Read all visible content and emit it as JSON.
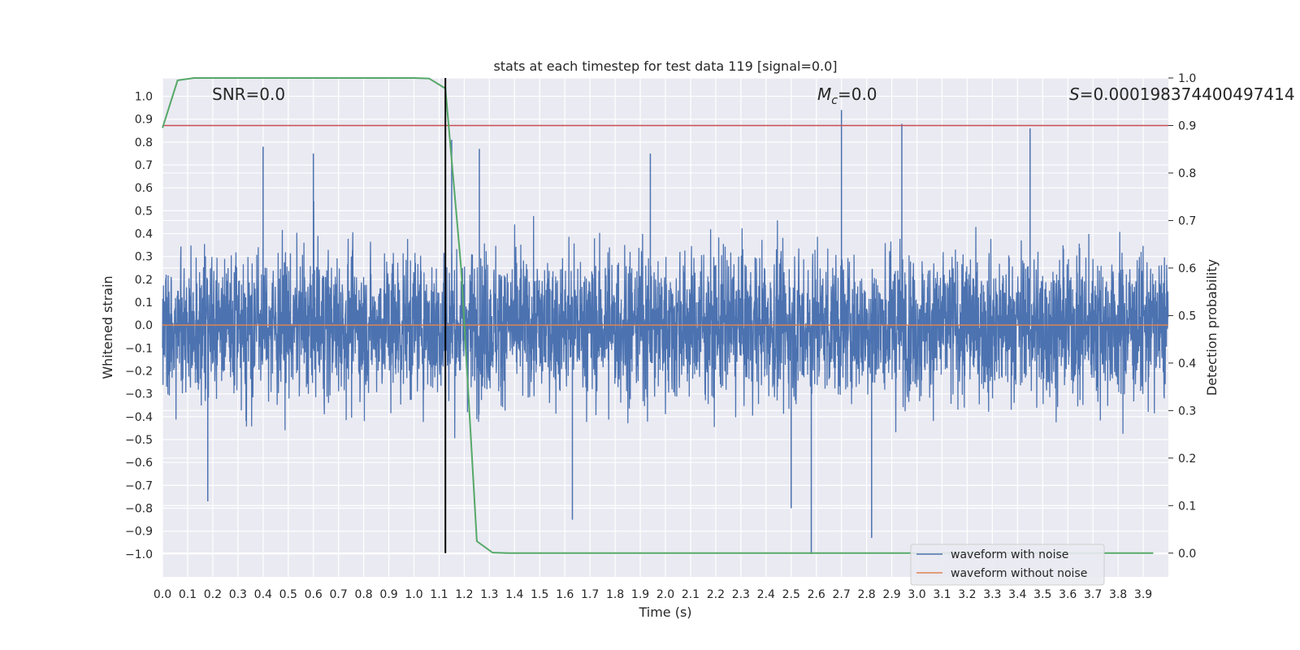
{
  "chart_data": {
    "type": "line",
    "title": "stats at each timestep for test data 119 [signal=0.0]",
    "xlabel": "Time (s)",
    "ylabel_left": "Whitened strain",
    "ylabel_right": "Detection probability",
    "xlim": [
      0.0,
      4.0
    ],
    "ylim_left": [
      -1.1,
      1.08
    ],
    "ylim_right": [
      -0.05,
      1.0
    ],
    "x_ticks": [
      0.0,
      0.1,
      0.2,
      0.3,
      0.4,
      0.5,
      0.6,
      0.7,
      0.8,
      0.9,
      1.0,
      1.1,
      1.2,
      1.3,
      1.4,
      1.5,
      1.6,
      1.7,
      1.8,
      1.9,
      2.0,
      2.1,
      2.2,
      2.3,
      2.4,
      2.5,
      2.6,
      2.7,
      2.8,
      2.9,
      3.0,
      3.1,
      3.2,
      3.3,
      3.4,
      3.5,
      3.6,
      3.7,
      3.8,
      3.9
    ],
    "x_tick_labels": [
      "0.0",
      "0.1",
      "0.2",
      "0.3",
      "0.4",
      "0.5",
      "0.6",
      "0.7",
      "0.8",
      "0.9",
      "1.0",
      "1.1",
      "1.2",
      "1.3",
      "1.4",
      "1.5",
      "1.6",
      "1.7",
      "1.8",
      "1.9",
      "2.0",
      "2.1",
      "2.2",
      "2.3",
      "2.4",
      "2.5",
      "2.6",
      "2.7",
      "2.8",
      "2.9",
      "3.0",
      "3.1",
      "3.2",
      "3.3",
      "3.4",
      "3.5",
      "3.6",
      "3.7",
      "3.8",
      "3.9"
    ],
    "y_left_ticks": [
      -1.0,
      -0.9,
      -0.8,
      -0.7,
      -0.6,
      -0.5,
      -0.4,
      -0.3,
      -0.2,
      -0.1,
      0.0,
      0.1,
      0.2,
      0.3,
      0.4,
      0.5,
      0.6,
      0.7,
      0.8,
      0.9,
      1.0
    ],
    "y_left_tick_labels": [
      "−1.0",
      "−0.9",
      "−0.8",
      "−0.7",
      "−0.6",
      "−0.5",
      "−0.4",
      "−0.3",
      "−0.2",
      "−0.1",
      "0.0",
      "0.1",
      "0.2",
      "0.3",
      "0.4",
      "0.5",
      "0.6",
      "0.7",
      "0.8",
      "0.9",
      "1.0"
    ],
    "y_right_ticks": [
      0.0,
      0.1,
      0.2,
      0.3,
      0.4,
      0.5,
      0.6,
      0.7,
      0.8,
      0.9,
      1.0
    ],
    "y_right_tick_labels": [
      "0.0",
      "0.1",
      "0.2",
      "0.3",
      "0.4",
      "0.5",
      "0.6",
      "0.7",
      "0.8",
      "0.9",
      "1.0"
    ],
    "grid": true,
    "legend_position": "lower-right",
    "annotations": {
      "snr": "SNR=0.0",
      "mc_symbol": "M",
      "mc_sub": "c",
      "mc_value": "=0.0",
      "s_symbol": "S",
      "s_value": "=0.00019837440049741​4"
    },
    "series": [
      {
        "name": "waveform with noise",
        "axis": "left",
        "color": "#4c72b0",
        "description": "noise-like whitened strain, roughly within -0.7..0.8",
        "sample_rate_hz": 1024,
        "amplitude_std": 0.22,
        "notable_peaks": [
          [
            0.4,
            0.78
          ],
          [
            0.6,
            0.75
          ],
          [
            1.15,
            0.81
          ],
          [
            1.26,
            0.77
          ],
          [
            1.94,
            0.75
          ],
          [
            2.7,
            0.94
          ],
          [
            2.94,
            0.88
          ],
          [
            3.45,
            0.86
          ],
          [
            2.58,
            -1.0
          ],
          [
            2.82,
            -0.93
          ],
          [
            1.63,
            -0.85
          ],
          [
            0.18,
            -0.77
          ],
          [
            2.5,
            -0.8
          ]
        ]
      },
      {
        "name": "waveform without noise",
        "axis": "left",
        "color": "#dd8452",
        "constant_value": 0.0
      },
      {
        "name": "detection probability",
        "axis": "right",
        "color": "#55a868",
        "x": [
          0.0,
          0.06,
          0.125,
          0.25,
          0.5,
          0.75,
          1.0,
          1.06,
          1.125,
          1.1875,
          1.25,
          1.3125,
          1.375,
          1.5,
          2.0,
          2.5,
          3.0,
          3.5,
          3.94
        ],
        "y": [
          0.895,
          0.995,
          1.0,
          1.0,
          1.0,
          1.0,
          1.0,
          0.999,
          0.978,
          0.6,
          0.025,
          0.001,
          0.0,
          0.0,
          0.0,
          0.0,
          0.0,
          0.0,
          0.0
        ]
      }
    ],
    "threshold": {
      "axis": "right",
      "value": 0.9,
      "color": "#c44e52"
    },
    "vertical_marker": {
      "x": 1.125,
      "color": "#000000"
    }
  }
}
